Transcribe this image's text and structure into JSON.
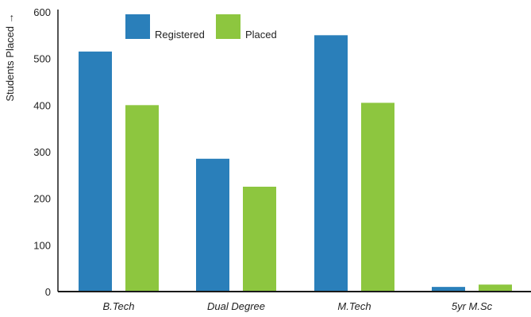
{
  "chart_data": {
    "type": "bar",
    "title": "",
    "xlabel": "",
    "ylabel": "Students Placed →",
    "ylim": [
      0,
      600
    ],
    "yticks": [
      "0",
      "100",
      "200",
      "300",
      "400",
      "500",
      "600"
    ],
    "categories": [
      "B.Tech",
      "Dual Degree",
      "M.Tech",
      "5yr M.Sc"
    ],
    "series": [
      {
        "name": "Registered",
        "color": "#2a7fba",
        "values": [
          515,
          285,
          550,
          10
        ]
      },
      {
        "name": "Placed",
        "color": "#8dc63f",
        "values": [
          400,
          225,
          405,
          15
        ]
      }
    ],
    "grid": false,
    "legend": "top-left"
  }
}
